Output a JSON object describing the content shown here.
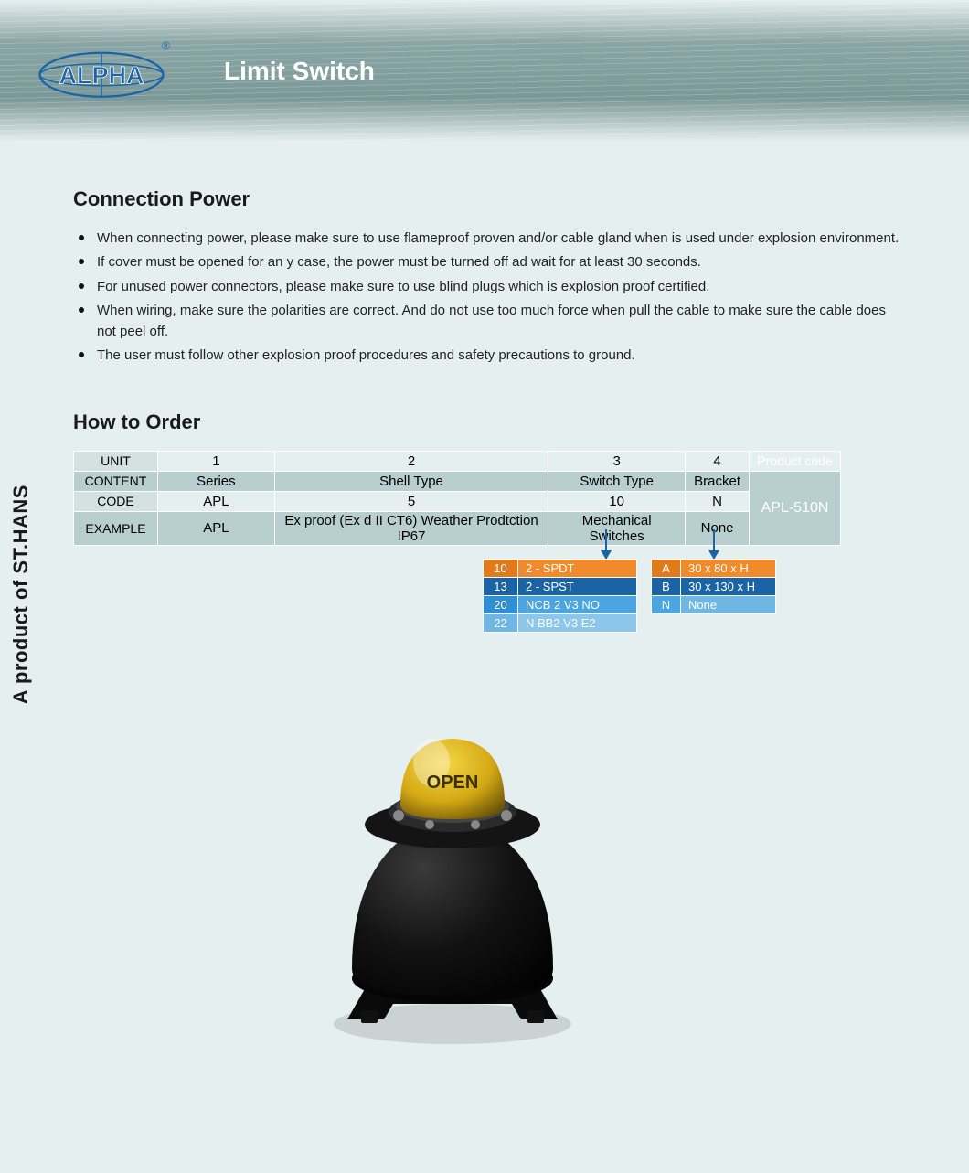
{
  "brand": "ALPHA",
  "page_title": "Limit Switch",
  "side_label": "A product of  ST.HANS",
  "section1": {
    "heading": "Connection Power",
    "bullets": [
      "When connecting power, please make sure to use flameproof proven and/or cable gland when is used under explosion environment.",
      "If cover must be opened for an y case, the power must be turned off ad wait for at least 30 seconds.",
      "For unused power connectors, please make sure to use blind plugs which is explosion proof certified.",
      "When wiring, make sure the polarities are correct. And do not use too much force when pull the cable to make sure the cable does not peel off.",
      "The user must follow other explosion proof procedures and safety precautions to ground."
    ]
  },
  "section2": {
    "heading": "How to Order",
    "row_labels": {
      "unit": "UNIT",
      "content": "CONTENT",
      "code": "CODE",
      "example": "EXAMPLE"
    },
    "cols": {
      "series": {
        "unit": "1",
        "content": "Series",
        "code": "APL",
        "example": "APL"
      },
      "shell": {
        "unit": "2",
        "content": "Shell Type",
        "code": "5",
        "example": "Ex proof (Ex d II CT6)  Weather Prodtction IP67"
      },
      "switch": {
        "unit": "3",
        "content": "Switch Type",
        "code": "10",
        "example": "Mechanical Switches"
      },
      "bracket": {
        "unit": "4",
        "content": "Bracket",
        "code": "N",
        "example": "None"
      }
    },
    "product_code_label": "Product code",
    "product_code": "APL-510N"
  },
  "switch_options": [
    {
      "k": "10",
      "v": "2 - SPDT",
      "bg_k": "#e07a1b",
      "bg_v": "#f08a2a"
    },
    {
      "k": "13",
      "v": "2 - SPST",
      "bg_k": "#1a64a5",
      "bg_v": "#1a64a5"
    },
    {
      "k": "20",
      "v": "NCB 2 V3 NO",
      "bg_k": "#2f8fd4",
      "bg_v": "#4aa5e0"
    },
    {
      "k": "22",
      "v": "N BB2 V3 E2",
      "bg_k": "#6fb7e2",
      "bg_v": "#8cc7ea"
    }
  ],
  "bracket_options": [
    {
      "k": "A",
      "v": "30 x 80 x H",
      "bg_k": "#e07a1b",
      "bg_v": "#f08a2a"
    },
    {
      "k": "B",
      "v": "30 x 130 x H",
      "bg_k": "#1a64a5",
      "bg_v": "#1a64a5"
    },
    {
      "k": "N",
      "v": "None",
      "bg_k": "#4aa5e0",
      "bg_v": "#6fb7e2"
    }
  ],
  "product_dome_text": "OPEN",
  "colors": {
    "header_band": "#7b9898",
    "page_bg": "#e6efef",
    "tbl_light": "#e6efef",
    "tbl_med": "#d3e1e1",
    "tbl_dark": "#b9cfcf",
    "accent_blue": "#1a64a5"
  }
}
